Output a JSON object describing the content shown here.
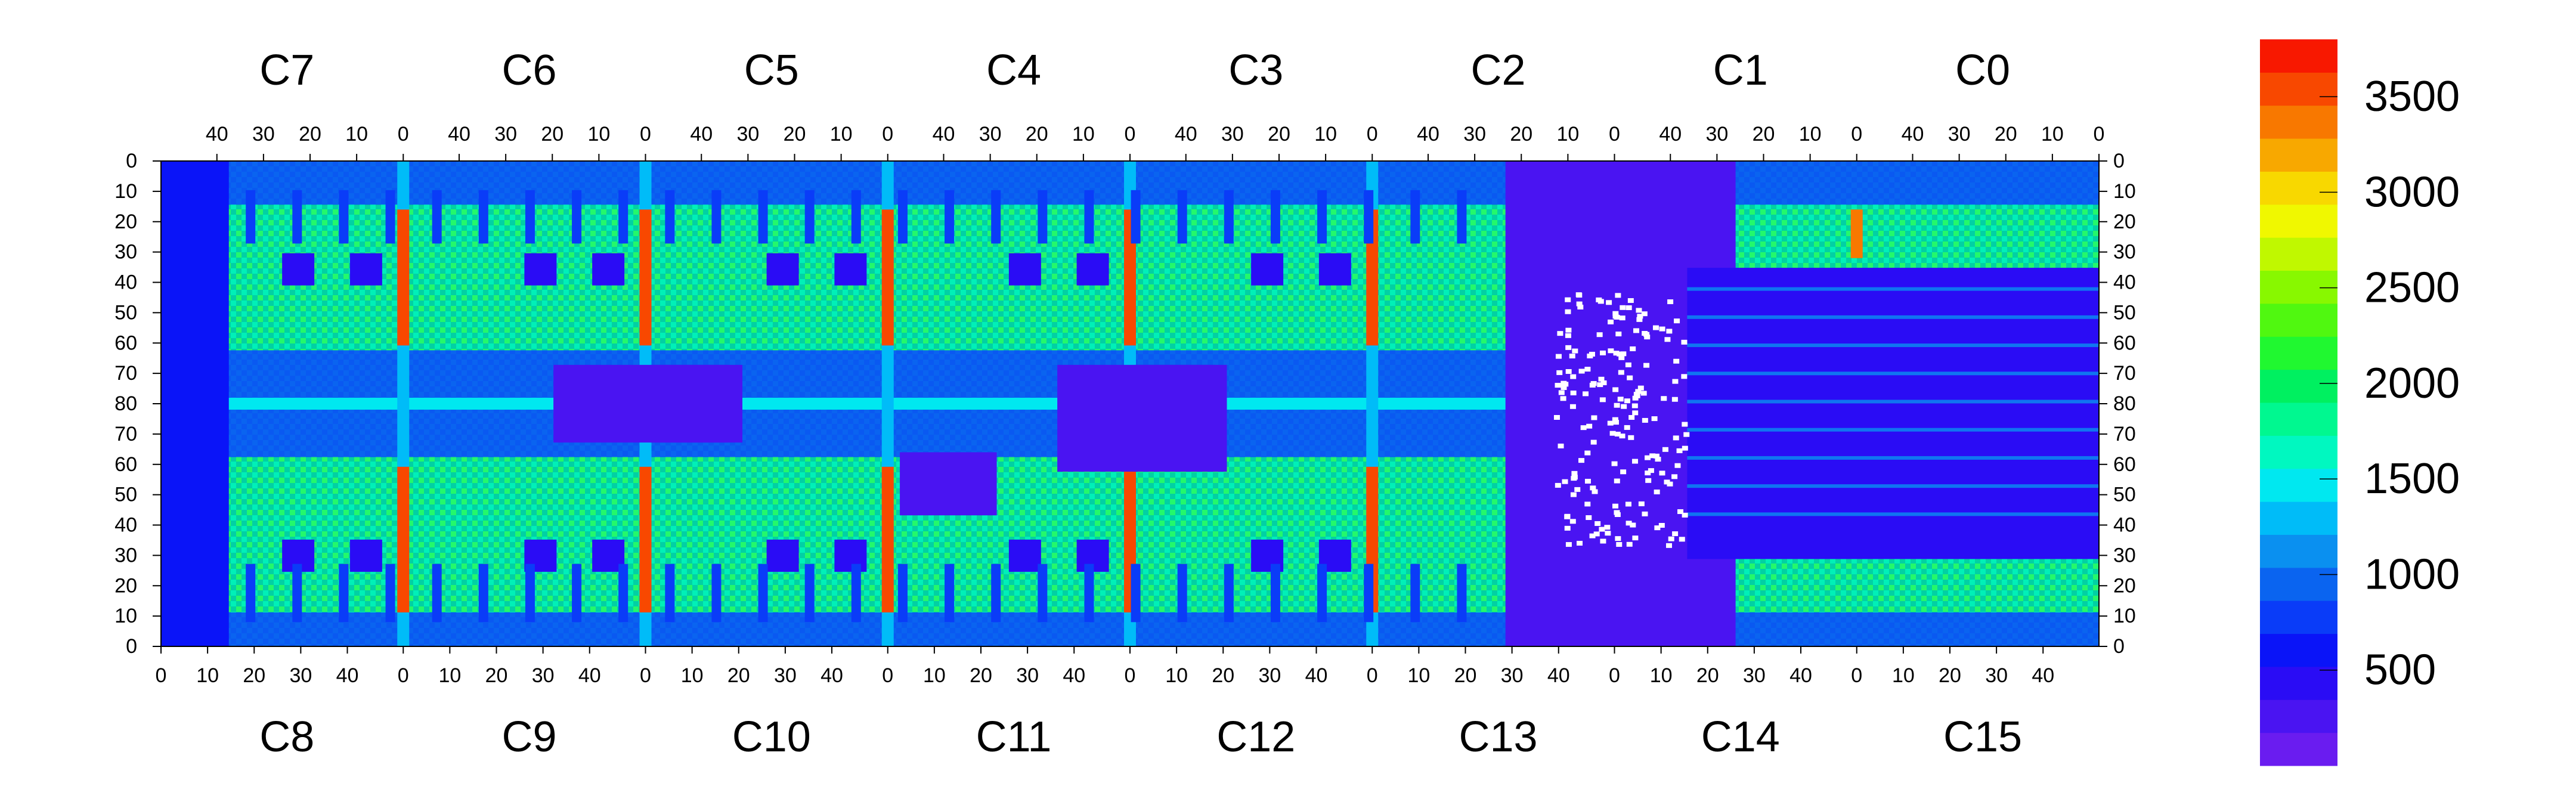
{
  "chart_data": {
    "type": "heatmap",
    "title": "",
    "xlabel": "",
    "ylabel": "",
    "top_chip_labels": [
      "C7",
      "C6",
      "C5",
      "C4",
      "C3",
      "C2",
      "C1",
      "C0"
    ],
    "bottom_chip_labels": [
      "C8",
      "C9",
      "C10",
      "C11",
      "C12",
      "C13",
      "C14",
      "C15"
    ],
    "top_x_tick_labels": [
      "40",
      "30",
      "20",
      "10",
      "0"
    ],
    "bottom_x_tick_labels": [
      "0",
      "10",
      "20",
      "30",
      "40"
    ],
    "y_tick_labels": [
      "0",
      "10",
      "20",
      "30",
      "40",
      "50",
      "60",
      "70",
      "80",
      "70",
      "60",
      "50",
      "40",
      "30",
      "20",
      "10",
      "0"
    ],
    "columns_per_chip": 52,
    "rows_per_half": 80,
    "z_range": [
      0,
      3800
    ],
    "colorbar": {
      "tick_values": [
        500,
        1000,
        1500,
        2000,
        2500,
        3000,
        3500
      ],
      "tick_labels": [
        "500",
        "1000",
        "1500",
        "2000",
        "2500",
        "3000",
        "3500"
      ],
      "colors": [
        "#6a1cf0",
        "#4a14f2",
        "#2a0cf5",
        "#0a14f8",
        "#0a3cf8",
        "#0a64f0",
        "#0a90f0",
        "#00bcf8",
        "#00e8f0",
        "#00f8c0",
        "#00f890",
        "#00f060",
        "#20f830",
        "#50f810",
        "#88f800",
        "#c0f800",
        "#f0f800",
        "#f8d800",
        "#f8a800",
        "#f87800",
        "#f84800",
        "#f81800"
      ]
    },
    "grid": false,
    "regions": {
      "background_level": 1800,
      "dense_band_level": 3600,
      "middle_strip_level": 950,
      "masked_regions_level": 300,
      "disconnected_chip": "C2/C13",
      "dead_pixels_color": "#ffffff"
    }
  }
}
